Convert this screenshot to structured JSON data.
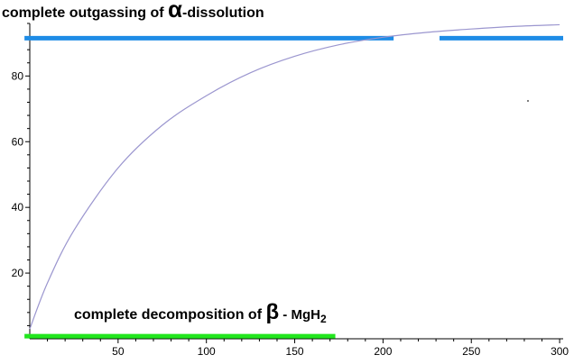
{
  "chart_data": {
    "type": "line",
    "title": "",
    "xlabel": "",
    "ylabel": "",
    "xlim": [
      0,
      302
    ],
    "ylim": [
      0,
      96
    ],
    "grid": false,
    "x_ticks": [
      50,
      100,
      150,
      200,
      250,
      300
    ],
    "x_tick_labels": [
      "50",
      "100",
      "150",
      "200",
      "250",
      "300"
    ],
    "y_ticks": [
      20,
      40,
      60,
      80
    ],
    "y_tick_labels": [
      "20",
      "40",
      "60",
      "80"
    ],
    "series": [
      {
        "color": "#9b96cf",
        "x": [
          0,
          10,
          25,
          50,
          75,
          100,
          125,
          150,
          175,
          200,
          225,
          250,
          275,
          300
        ],
        "y": [
          3,
          17,
          33,
          52,
          65,
          74,
          81,
          86,
          89.5,
          91.8,
          93.3,
          94.3,
          95.1,
          95.6
        ]
      }
    ],
    "reference_lines": [
      {
        "color": "#1e8ce6",
        "y": 91.5,
        "segments": [
          [
            -3,
            206
          ],
          [
            232,
            302
          ]
        ],
        "label_parts": [
          "complete outgassing of ",
          "α",
          "-dissolution"
        ]
      },
      {
        "color": "#22e61e",
        "y": 0.8,
        "segments": [
          [
            -3,
            173
          ]
        ],
        "label_parts": [
          "complete decomposition of ",
          "β",
          " - MgH",
          "2"
        ]
      }
    ]
  }
}
